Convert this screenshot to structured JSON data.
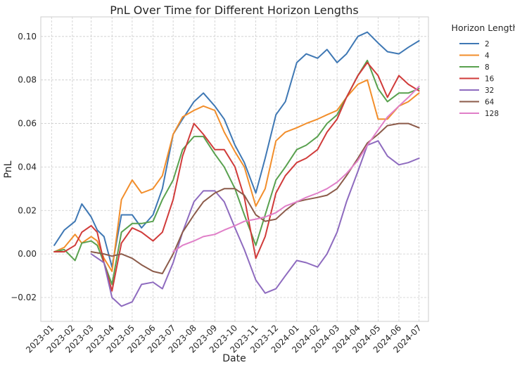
{
  "chart_data": {
    "type": "line",
    "title": "PnL Over Time for Different Horizon Lengths",
    "xlabel": "Date",
    "ylabel": "PnL",
    "xlim": [
      "2022-12-16",
      "2024-07-15"
    ],
    "ylim": [
      -0.031,
      0.109
    ],
    "x_ticks": [
      "2023-01",
      "2023-02",
      "2023-03",
      "2023-04",
      "2023-05",
      "2023-06",
      "2023-07",
      "2023-08",
      "2023-09",
      "2023-10",
      "2023-11",
      "2023-12",
      "2024-01",
      "2024-02",
      "2024-03",
      "2024-04",
      "2024-05",
      "2024-06",
      "2024-07"
    ],
    "y_ticks": [
      -0.02,
      0.0,
      0.02,
      0.04,
      0.06,
      0.08,
      0.1
    ],
    "y_tick_labels": [
      "−0.02",
      "0.00",
      "0.02",
      "0.04",
      "0.06",
      "0.08",
      "0.10"
    ],
    "grid": true,
    "legend": {
      "title": "Horizon Length",
      "placement": "outside-right"
    },
    "series": [
      {
        "name": "2",
        "color": "#3f78b4",
        "x": [
          "2023-01-05",
          "2023-01-20",
          "2023-02-05",
          "2023-02-15",
          "2023-03-01",
          "2023-03-10",
          "2023-03-20",
          "2023-04-01",
          "2023-04-15",
          "2023-05-01",
          "2023-05-15",
          "2023-06-01",
          "2023-06-15",
          "2023-07-01",
          "2023-07-15",
          "2023-08-01",
          "2023-08-15",
          "2023-09-01",
          "2023-09-15",
          "2023-10-01",
          "2023-10-15",
          "2023-11-01",
          "2023-11-15",
          "2023-12-01",
          "2023-12-15",
          "2024-01-01",
          "2024-01-15",
          "2024-02-01",
          "2024-02-15",
          "2024-03-01",
          "2024-03-15",
          "2024-04-01",
          "2024-04-15",
          "2024-05-01",
          "2024-05-15",
          "2024-06-01",
          "2024-06-15",
          "2024-07-01"
        ],
        "y": [
          0.004,
          0.011,
          0.015,
          0.023,
          0.017,
          0.011,
          0.008,
          -0.006,
          0.018,
          0.018,
          0.012,
          0.018,
          0.03,
          0.055,
          0.062,
          0.07,
          0.074,
          0.068,
          0.062,
          0.05,
          0.042,
          0.028,
          0.044,
          0.064,
          0.07,
          0.088,
          0.092,
          0.09,
          0.094,
          0.088,
          0.092,
          0.1,
          0.102,
          0.097,
          0.093,
          0.092,
          0.095,
          0.098
        ]
      },
      {
        "name": "4",
        "color": "#f28e2b",
        "x": [
          "2023-01-05",
          "2023-01-20",
          "2023-02-05",
          "2023-02-15",
          "2023-03-01",
          "2023-03-10",
          "2023-03-20",
          "2023-04-01",
          "2023-04-15",
          "2023-05-01",
          "2023-05-15",
          "2023-06-01",
          "2023-06-15",
          "2023-07-01",
          "2023-07-15",
          "2023-08-01",
          "2023-08-15",
          "2023-09-01",
          "2023-09-15",
          "2023-10-01",
          "2023-10-15",
          "2023-11-01",
          "2023-11-15",
          "2023-12-01",
          "2023-12-15",
          "2024-01-01",
          "2024-01-15",
          "2024-02-01",
          "2024-02-15",
          "2024-03-01",
          "2024-03-15",
          "2024-04-01",
          "2024-04-15",
          "2024-05-01",
          "2024-05-15",
          "2024-06-01",
          "2024-06-15",
          "2024-07-01"
        ],
        "y": [
          0.001,
          0.003,
          0.009,
          0.005,
          0.008,
          0.006,
          -0.002,
          -0.008,
          0.025,
          0.034,
          0.028,
          0.03,
          0.036,
          0.055,
          0.063,
          0.066,
          0.068,
          0.066,
          0.056,
          0.047,
          0.04,
          0.022,
          0.03,
          0.052,
          0.056,
          0.058,
          0.06,
          0.062,
          0.064,
          0.066,
          0.072,
          0.078,
          0.08,
          0.062,
          0.062,
          0.068,
          0.07,
          0.074
        ]
      },
      {
        "name": "8",
        "color": "#59a14f",
        "x": [
          "2023-01-05",
          "2023-01-20",
          "2023-02-05",
          "2023-02-15",
          "2023-03-01",
          "2023-03-10",
          "2023-03-20",
          "2023-04-01",
          "2023-04-15",
          "2023-05-01",
          "2023-05-15",
          "2023-06-01",
          "2023-06-15",
          "2023-07-01",
          "2023-07-15",
          "2023-08-01",
          "2023-08-15",
          "2023-09-01",
          "2023-09-15",
          "2023-10-01",
          "2023-10-15",
          "2023-11-01",
          "2023-11-15",
          "2023-12-01",
          "2023-12-15",
          "2024-01-01",
          "2024-01-15",
          "2024-02-01",
          "2024-02-15",
          "2024-03-01",
          "2024-03-15",
          "2024-04-01",
          "2024-04-15",
          "2024-05-01",
          "2024-05-15",
          "2024-06-01",
          "2024-06-15",
          "2024-07-01"
        ],
        "y": [
          0.001,
          0.002,
          -0.003,
          0.005,
          0.006,
          0.004,
          -0.004,
          -0.014,
          0.01,
          0.014,
          0.014,
          0.015,
          0.025,
          0.034,
          0.048,
          0.054,
          0.054,
          0.046,
          0.04,
          0.03,
          0.018,
          0.004,
          0.018,
          0.034,
          0.04,
          0.048,
          0.05,
          0.054,
          0.06,
          0.064,
          0.072,
          0.082,
          0.089,
          0.076,
          0.07,
          0.074,
          0.074,
          0.076
        ]
      },
      {
        "name": "16",
        "color": "#d03b3a",
        "x": [
          "2023-01-05",
          "2023-01-20",
          "2023-02-05",
          "2023-02-15",
          "2023-03-01",
          "2023-03-10",
          "2023-03-20",
          "2023-04-01",
          "2023-04-15",
          "2023-05-01",
          "2023-05-15",
          "2023-06-01",
          "2023-06-15",
          "2023-07-01",
          "2023-07-15",
          "2023-08-01",
          "2023-08-15",
          "2023-09-01",
          "2023-09-15",
          "2023-10-01",
          "2023-10-15",
          "2023-11-01",
          "2023-11-15",
          "2023-12-01",
          "2023-12-15",
          "2024-01-01",
          "2024-01-15",
          "2024-02-01",
          "2024-02-15",
          "2024-03-01",
          "2024-03-15",
          "2024-04-01",
          "2024-04-15",
          "2024-05-01",
          "2024-05-15",
          "2024-06-01",
          "2024-06-15",
          "2024-07-01"
        ],
        "y": [
          0.001,
          0.001,
          0.004,
          0.01,
          0.013,
          0.01,
          -0.004,
          -0.017,
          0.005,
          0.012,
          0.01,
          0.006,
          0.01,
          0.025,
          0.045,
          0.06,
          0.055,
          0.048,
          0.048,
          0.04,
          0.026,
          -0.002,
          0.008,
          0.028,
          0.036,
          0.042,
          0.044,
          0.048,
          0.056,
          0.062,
          0.072,
          0.082,
          0.088,
          0.082,
          0.072,
          0.082,
          0.078,
          0.075
        ]
      },
      {
        "name": "32",
        "color": "#8e6bbf",
        "x": [
          "2023-03-01",
          "2023-03-20",
          "2023-04-01",
          "2023-04-15",
          "2023-05-01",
          "2023-05-15",
          "2023-06-01",
          "2023-06-15",
          "2023-07-01",
          "2023-07-15",
          "2023-08-01",
          "2023-08-15",
          "2023-09-01",
          "2023-09-15",
          "2023-10-01",
          "2023-10-15",
          "2023-11-01",
          "2023-11-15",
          "2023-12-01",
          "2023-12-15",
          "2024-01-01",
          "2024-01-15",
          "2024-02-01",
          "2024-02-15",
          "2024-03-01",
          "2024-03-15",
          "2024-04-01",
          "2024-04-15",
          "2024-05-01",
          "2024-05-15",
          "2024-06-01",
          "2024-06-15",
          "2024-07-01"
        ],
        "y": [
          0.0,
          -0.004,
          -0.02,
          -0.024,
          -0.022,
          -0.014,
          -0.013,
          -0.016,
          -0.004,
          0.01,
          0.024,
          0.029,
          0.029,
          0.024,
          0.012,
          0.002,
          -0.012,
          -0.018,
          -0.016,
          -0.01,
          -0.003,
          -0.004,
          -0.006,
          0.0,
          0.01,
          0.024,
          0.038,
          0.05,
          0.052,
          0.045,
          0.041,
          0.042,
          0.044
        ]
      },
      {
        "name": "64",
        "color": "#8c5b4a",
        "x": [
          "2023-03-01",
          "2023-03-20",
          "2023-04-01",
          "2023-04-15",
          "2023-05-01",
          "2023-05-15",
          "2023-06-01",
          "2023-06-15",
          "2023-07-01",
          "2023-07-15",
          "2023-08-01",
          "2023-08-15",
          "2023-09-01",
          "2023-09-15",
          "2023-10-01",
          "2023-10-15",
          "2023-11-01",
          "2023-11-15",
          "2023-12-01",
          "2023-12-15",
          "2024-01-01",
          "2024-01-15",
          "2024-02-01",
          "2024-02-15",
          "2024-03-01",
          "2024-03-15",
          "2024-04-01",
          "2024-04-15",
          "2024-05-01",
          "2024-05-15",
          "2024-06-01",
          "2024-06-15",
          "2024-07-01"
        ],
        "y": [
          0.001,
          0.0,
          -0.001,
          0.0,
          -0.002,
          -0.005,
          -0.008,
          -0.009,
          0.0,
          0.01,
          0.018,
          0.024,
          0.028,
          0.03,
          0.03,
          0.027,
          0.018,
          0.015,
          0.016,
          0.02,
          0.024,
          0.025,
          0.026,
          0.027,
          0.03,
          0.036,
          0.044,
          0.051,
          0.055,
          0.059,
          0.06,
          0.06,
          0.058
        ]
      },
      {
        "name": "128",
        "color": "#e07fc8",
        "x": [
          "2023-07-01",
          "2023-07-15",
          "2023-08-01",
          "2023-08-15",
          "2023-09-01",
          "2023-09-15",
          "2023-10-01",
          "2023-10-15",
          "2023-11-01",
          "2023-11-15",
          "2023-12-01",
          "2023-12-15",
          "2024-01-01",
          "2024-01-15",
          "2024-02-01",
          "2024-02-15",
          "2024-03-01",
          "2024-03-15",
          "2024-04-01",
          "2024-04-15",
          "2024-05-01",
          "2024-05-15",
          "2024-06-01",
          "2024-06-15",
          "2024-07-01"
        ],
        "y": [
          0.001,
          0.004,
          0.006,
          0.008,
          0.009,
          0.011,
          0.013,
          0.015,
          0.016,
          0.017,
          0.019,
          0.022,
          0.024,
          0.026,
          0.028,
          0.03,
          0.033,
          0.037,
          0.043,
          0.05,
          0.057,
          0.063,
          0.068,
          0.072,
          0.077
        ]
      }
    ]
  }
}
